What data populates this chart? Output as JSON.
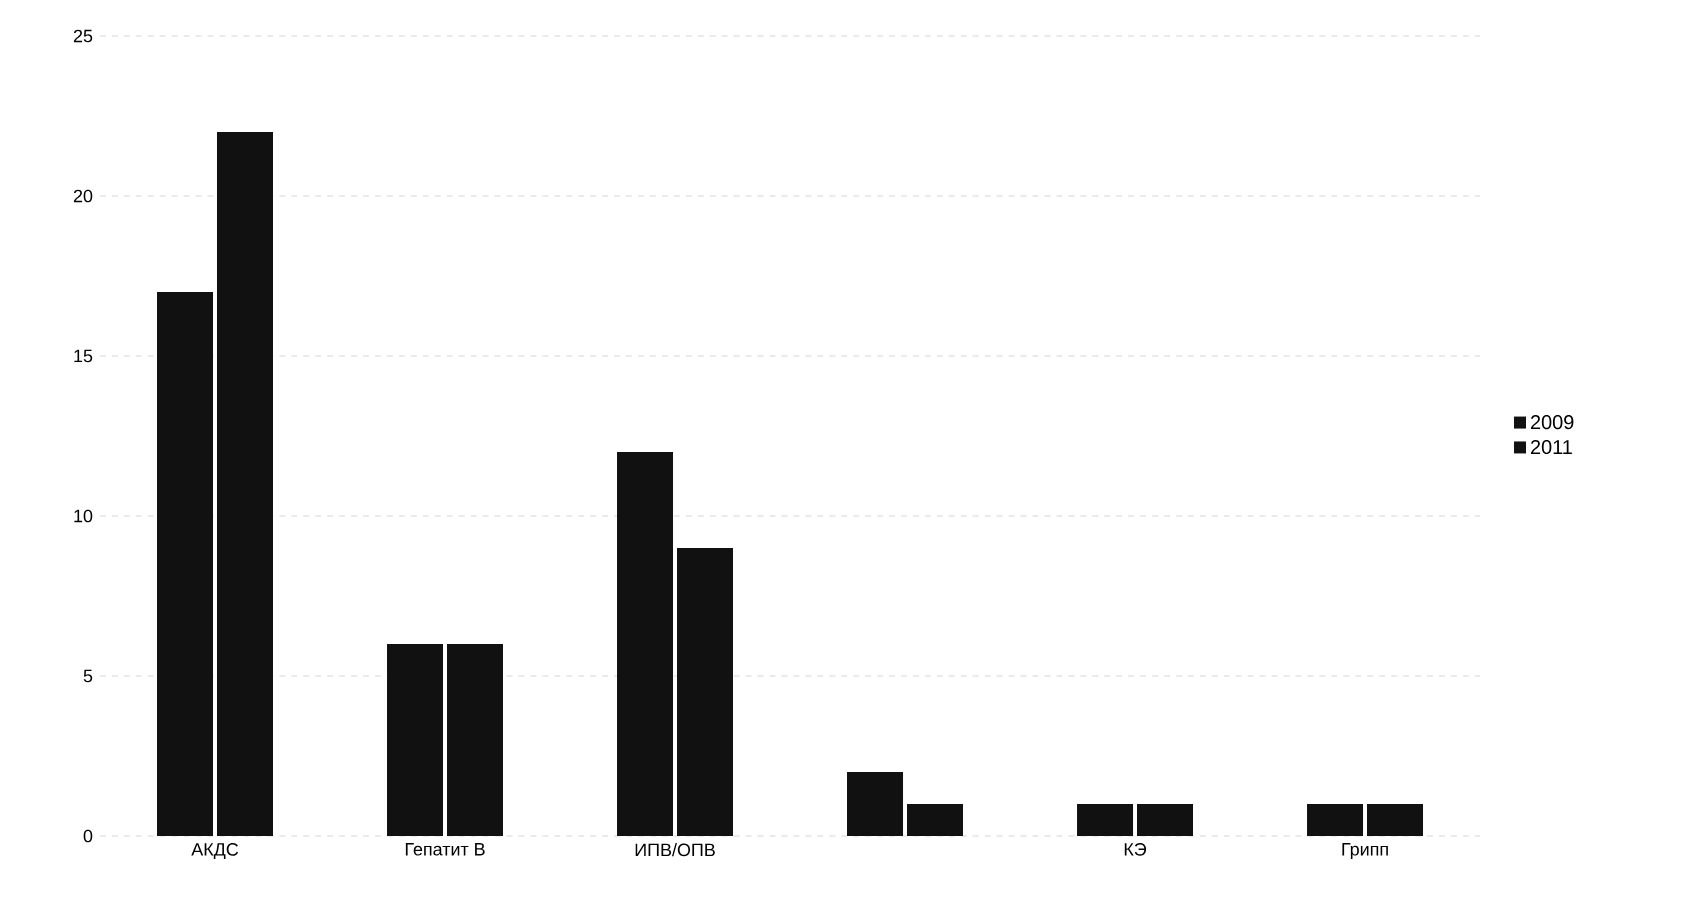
{
  "chart_data": {
    "type": "bar",
    "categories": [
      "АКДС",
      "Гепатит В",
      "ИПВ/ОПВ",
      null,
      "КЭ",
      "Грипп"
    ],
    "series": [
      {
        "name": "2009",
        "color": "#111111",
        "values": [
          17,
          6,
          12,
          2,
          1,
          1
        ]
      },
      {
        "name": "2011",
        "color": "#111111",
        "values": [
          22,
          6,
          9,
          1,
          1,
          1
        ]
      }
    ],
    "ylim": [
      0,
      25
    ],
    "yticks": [
      0,
      5,
      10,
      15,
      20,
      25
    ],
    "grid": "y",
    "legend": "right"
  }
}
